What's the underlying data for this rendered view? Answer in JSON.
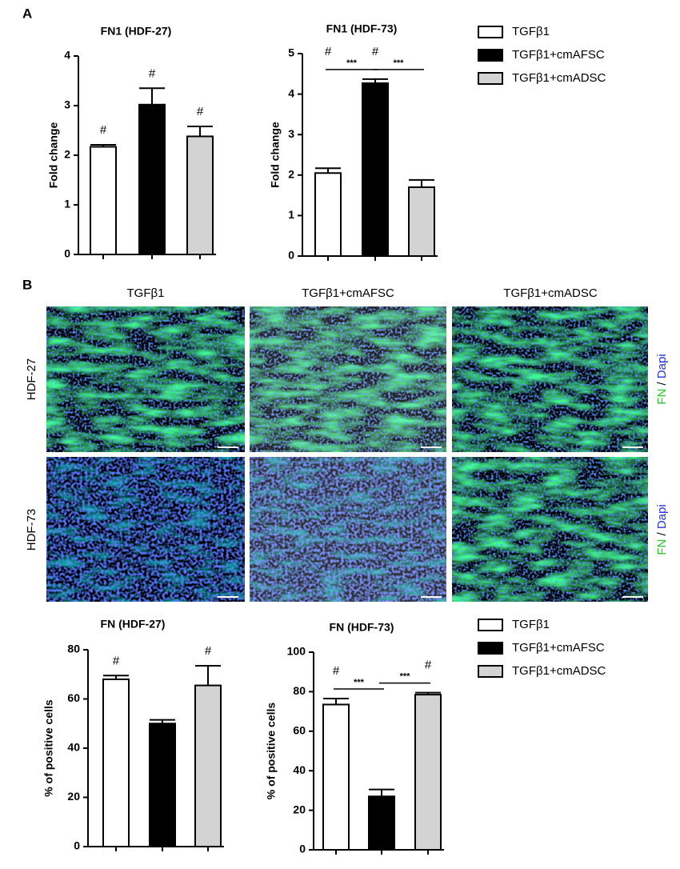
{
  "panel_labels": [
    "A",
    "B"
  ],
  "chart_data": [
    {
      "type": "bar",
      "title": "FN1 (HDF-27)",
      "ylabel": "Fold change",
      "categories": [
        null,
        null,
        null
      ],
      "values": [
        2.17,
        3.02,
        2.38
      ],
      "errors": [
        0.04,
        0.33,
        0.2
      ],
      "colors": [
        "#ffffff",
        "#000000",
        "#d3d3d3"
      ],
      "notes": [
        "#",
        "#",
        "#"
      ],
      "significance": [
        null,
        null
      ],
      "ylim": [
        0,
        4
      ],
      "yticks": [
        0,
        1,
        2,
        3,
        4
      ],
      "legend": [
        "TGFβ1",
        "TGFβ1+cmAFSC",
        "TGFβ1+cmADSC"
      ]
    },
    {
      "type": "bar",
      "title": "FN1 (HDF-73)",
      "ylabel": "Fold change",
      "categories": [
        null,
        null,
        null
      ],
      "values": [
        2.05,
        4.27,
        1.7
      ],
      "errors": [
        0.12,
        0.1,
        0.18
      ],
      "colors": [
        "#ffffff",
        "#000000",
        "#d3d3d3"
      ],
      "notes": [
        "#",
        "#",
        null
      ],
      "significance": [
        "***",
        "***"
      ],
      "ylim": [
        0,
        5
      ],
      "yticks": [
        0,
        1,
        2,
        3,
        4,
        5
      ]
    },
    {
      "type": "bar",
      "title": "FN (HDF-27)",
      "ylabel": "% of positive cells",
      "categories": [
        null,
        null,
        null
      ],
      "values": [
        68,
        50,
        65.5
      ],
      "errors": [
        1.5,
        1.5,
        8
      ],
      "colors": [
        "#ffffff",
        "#000000",
        "#d3d3d3"
      ],
      "notes": [
        "#",
        null,
        "#"
      ],
      "significance": [
        null,
        null
      ],
      "ylim": [
        0,
        80
      ],
      "yticks": [
        0,
        20,
        40,
        60,
        80
      ],
      "legend": [
        "TGFβ1",
        "TGFβ1+cmAFSC",
        "TGFβ1+cmADSC"
      ]
    },
    {
      "type": "bar",
      "title": "FN (HDF-73)",
      "ylabel": "% of positive cells",
      "categories": [
        null,
        null,
        null
      ],
      "values": [
        73.5,
        27,
        78.5
      ],
      "errors": [
        3,
        3.5,
        1
      ],
      "colors": [
        "#ffffff",
        "#000000",
        "#d3d3d3"
      ],
      "notes": [
        "#",
        null,
        "#"
      ],
      "significance": [
        "***",
        "***"
      ],
      "ylim": [
        0,
        100
      ],
      "yticks": [
        0,
        20,
        40,
        60,
        80,
        100
      ]
    }
  ],
  "image_grid": {
    "columns": [
      "TGFβ1",
      "TGFβ1+cmAFSC",
      "TGFβ1+cmADSC"
    ],
    "rows": [
      "HDF-27",
      "HDF-73"
    ],
    "stain": [
      "FN",
      "/",
      "Dapi"
    ]
  }
}
